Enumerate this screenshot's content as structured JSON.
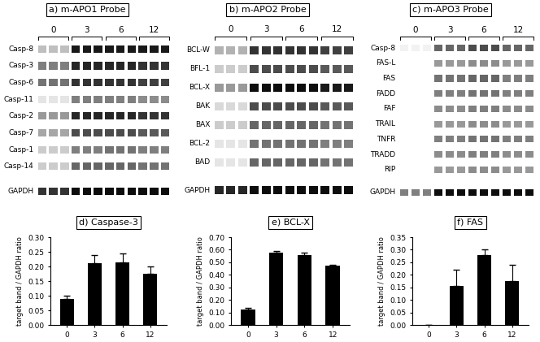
{
  "gels": [
    {
      "title": "a) m-APO1 Probe",
      "groups": [
        {
          "label": "0",
          "lanes": 3
        },
        {
          "label": "3",
          "lanes": 3
        },
        {
          "label": "6",
          "lanes": 3
        },
        {
          "label": "12",
          "lanes": 3
        }
      ],
      "rows": [
        {
          "label": "Casp-8",
          "band_intensity": [
            0.25,
            0.9,
            0.9,
            0.9
          ]
        },
        {
          "label": "Casp-3",
          "band_intensity": [
            0.5,
            0.85,
            0.85,
            0.8
          ]
        },
        {
          "label": "Casp-6",
          "band_intensity": [
            0.55,
            0.8,
            0.8,
            0.75
          ]
        },
        {
          "label": "Casp-11",
          "band_intensity": [
            0.1,
            0.5,
            0.5,
            0.45
          ]
        },
        {
          "label": "Casp-2",
          "band_intensity": [
            0.4,
            0.85,
            0.85,
            0.8
          ]
        },
        {
          "label": "Casp-7",
          "band_intensity": [
            0.35,
            0.7,
            0.7,
            0.65
          ]
        },
        {
          "label": "Casp-1",
          "band_intensity": [
            0.2,
            0.5,
            0.55,
            0.5
          ]
        },
        {
          "label": "Casp-14",
          "band_intensity": [
            0.2,
            0.6,
            0.6,
            0.55
          ]
        },
        {
          "label": "GAPDH",
          "band_intensity": [
            0.8,
            0.95,
            0.95,
            0.95
          ]
        }
      ]
    },
    {
      "title": "b) m-APO2 Probe",
      "groups": [
        {
          "label": "0",
          "lanes": 3
        },
        {
          "label": "3",
          "lanes": 3
        },
        {
          "label": "6",
          "lanes": 3
        },
        {
          "label": "12",
          "lanes": 3
        }
      ],
      "rows": [
        {
          "label": "BCL-W",
          "band_intensity": [
            0.3,
            0.8,
            0.8,
            0.75
          ]
        },
        {
          "label": "BFL-1",
          "band_intensity": [
            0.2,
            0.7,
            0.7,
            0.65
          ]
        },
        {
          "label": "BCL-X",
          "band_intensity": [
            0.4,
            0.95,
            0.95,
            0.9
          ]
        },
        {
          "label": "BAK",
          "band_intensity": [
            0.15,
            0.7,
            0.7,
            0.65
          ]
        },
        {
          "label": "BAX",
          "band_intensity": [
            0.2,
            0.6,
            0.6,
            0.55
          ]
        },
        {
          "label": "BCL-2",
          "band_intensity": [
            0.1,
            0.55,
            0.55,
            0.5
          ]
        },
        {
          "label": "BAD",
          "band_intensity": [
            0.1,
            0.6,
            0.6,
            0.55
          ]
        },
        {
          "label": "GAPDH",
          "band_intensity": [
            0.85,
            0.95,
            0.95,
            0.95
          ]
        }
      ]
    },
    {
      "title": "c) m-APO3 Probe",
      "groups": [
        {
          "label": "0",
          "lanes": 3
        },
        {
          "label": "3",
          "lanes": 3
        },
        {
          "label": "6",
          "lanes": 3
        },
        {
          "label": "12",
          "lanes": 3
        }
      ],
      "rows": [
        {
          "label": "Casp-8",
          "band_intensity": [
            0.05,
            0.6,
            0.7,
            0.6
          ]
        },
        {
          "label": "FAS-L",
          "band_intensity": [
            0.0,
            0.4,
            0.45,
            0.4
          ]
        },
        {
          "label": "FAS",
          "band_intensity": [
            0.0,
            0.55,
            0.6,
            0.5
          ]
        },
        {
          "label": "FADD",
          "band_intensity": [
            0.0,
            0.5,
            0.55,
            0.5
          ]
        },
        {
          "label": "FAF",
          "band_intensity": [
            0.0,
            0.45,
            0.5,
            0.45
          ]
        },
        {
          "label": "TRAIL",
          "band_intensity": [
            0.0,
            0.4,
            0.45,
            0.4
          ]
        },
        {
          "label": "TNFR",
          "band_intensity": [
            0.0,
            0.5,
            0.55,
            0.5
          ]
        },
        {
          "label": "TRADD",
          "band_intensity": [
            0.0,
            0.45,
            0.5,
            0.45
          ]
        },
        {
          "label": "RIP",
          "band_intensity": [
            0.0,
            0.4,
            0.45,
            0.4
          ]
        },
        {
          "label": "GAPDH",
          "band_intensity": [
            0.5,
            0.95,
            0.95,
            0.95
          ]
        }
      ]
    }
  ],
  "chart_data": [
    {
      "type": "bar",
      "title": "d) Caspase-3",
      "y_label": "target band / GAPDH ratio",
      "categories": [
        "0",
        "3",
        "6",
        "12"
      ],
      "values": [
        0.09,
        0.21,
        0.215,
        0.175
      ],
      "errors": [
        0.01,
        0.03,
        0.03,
        0.025
      ],
      "color": "#000000",
      "ylim": [
        0,
        0.3
      ],
      "yticks": [
        {
          "value": 0,
          "label": "0.00"
        },
        {
          "value": 0.05,
          "label": "0.05"
        },
        {
          "value": 0.1,
          "label": "0.10"
        },
        {
          "value": 0.15,
          "label": "0.15"
        },
        {
          "value": 0.2,
          "label": "0.20"
        },
        {
          "value": 0.25,
          "label": "0.25"
        },
        {
          "value": 0.3,
          "label": "0.30"
        }
      ]
    },
    {
      "type": "bar",
      "title": "e) BCL-X",
      "y_label": "target band / GAPDH ratio",
      "categories": [
        "0",
        "3",
        "6",
        "12"
      ],
      "values": [
        0.12,
        0.58,
        0.56,
        0.47
      ],
      "errors": [
        0.015,
        0.01,
        0.015,
        0.01
      ],
      "color": "#000000",
      "ylim": [
        0,
        0.7
      ],
      "yticks": [
        {
          "value": 0,
          "label": "0.00"
        },
        {
          "value": 0.1,
          "label": "0.10"
        },
        {
          "value": 0.2,
          "label": "0.20"
        },
        {
          "value": 0.3,
          "label": "0.30"
        },
        {
          "value": 0.4,
          "label": "0.40"
        },
        {
          "value": 0.5,
          "label": "0.50"
        },
        {
          "value": 0.6,
          "label": "0.60"
        },
        {
          "value": 0.7,
          "label": "0.70"
        }
      ]
    },
    {
      "type": "bar",
      "title": "f) FAS",
      "y_label": "target band / GAPDH ratio",
      "categories": [
        "0",
        "3",
        "6",
        "12"
      ],
      "values": [
        0,
        0.155,
        0.28,
        0.175
      ],
      "errors": [
        0,
        0.065,
        0.02,
        0.065
      ],
      "color": "#000000",
      "ylim": [
        0,
        0.35
      ],
      "yticks": [
        {
          "value": 0,
          "label": "0.00"
        },
        {
          "value": 0.05,
          "label": "0.05"
        },
        {
          "value": 0.1,
          "label": "0.10"
        },
        {
          "value": 0.15,
          "label": "0.15"
        },
        {
          "value": 0.2,
          "label": "0.20"
        },
        {
          "value": 0.25,
          "label": "0.25"
        },
        {
          "value": 0.3,
          "label": "0.30"
        },
        {
          "value": 0.35,
          "label": "0.35"
        }
      ]
    }
  ]
}
